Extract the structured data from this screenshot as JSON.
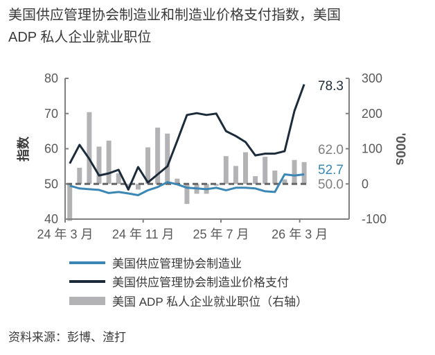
{
  "chart_data": {
    "type": "line",
    "title": "美国供应管理协会制造业和制造业价格支付指数，美国 ADP 私人企业就业职位",
    "ylabel": "指数",
    "y2label": "'000s",
    "ylim": [
      40,
      80
    ],
    "y2lim": [
      -100,
      300
    ],
    "yticks": [
      "80",
      "70",
      "60",
      "50",
      "40"
    ],
    "y2ticks": [
      "300",
      "200",
      "100",
      "0",
      "-100"
    ],
    "xticks": [
      "24 年 3 月",
      "24 年 11 月",
      "25 年 7 月",
      "26 年 3 月"
    ],
    "reference_line": 50,
    "x": [
      "2024-03",
      "2024-04",
      "2024-05",
      "2024-06",
      "2024-07",
      "2024-08",
      "2024-09",
      "2024-10",
      "2024-11",
      "2024-12",
      "2025-01",
      "2025-02",
      "2025-03",
      "2025-04",
      "2025-05",
      "2025-06",
      "2025-07",
      "2025-08",
      "2025-09",
      "2025-10",
      "2025-11",
      "2025-12",
      "2026-01",
      "2026-02",
      "2026-03"
    ],
    "series": [
      {
        "name": "美国供应管理协会制造业",
        "axis": "left",
        "type": "line",
        "color": "#3a87b5",
        "values": [
          49.5,
          48.7,
          48.5,
          48.3,
          47.4,
          47.7,
          47.3,
          46.8,
          48.2,
          49.1,
          50.5,
          49.9,
          48.9,
          48.7,
          48.5,
          48.9,
          48.2,
          48.9,
          48.9,
          48.7,
          47.9,
          47.7,
          52.7,
          52.4,
          52.7
        ]
      },
      {
        "name": "美国供应管理协会制造业价格支付",
        "axis": "left",
        "type": "line",
        "color": "#1c2b3a",
        "values": [
          55.8,
          61.1,
          57.1,
          52.4,
          53.0,
          54.0,
          48.4,
          54.8,
          50.4,
          52.7,
          55.0,
          62.2,
          69.6,
          70.1,
          69.6,
          70.0,
          65.0,
          63.6,
          61.9,
          58.1,
          58.6,
          58.6,
          59.3,
          70.7,
          78.3
        ]
      },
      {
        "name": "美国 ADP 私人企业就业职位（右轴）",
        "axis": "right",
        "type": "bar",
        "color": "#b3b3b6",
        "values": [
          -105,
          46,
          204,
          106,
          123,
          30,
          -10,
          -16,
          104,
          160,
          143,
          15,
          -57,
          -28,
          -28,
          -5,
          79,
          51,
          90,
          22,
          77,
          38,
          13,
          68,
          62
        ]
      }
    ],
    "end_labels": [
      {
        "text": "78.3",
        "color": "#1c2b3a"
      },
      {
        "text": "62.0",
        "color": "#7f7f7f"
      },
      {
        "text": "52.7",
        "color": "#3a87b5"
      },
      {
        "text": "50.0",
        "color": "#7f7f7f"
      }
    ]
  },
  "title_line1": "美国供应管理协会制造业和制造业价格支付指数，美国",
  "title_line2": "ADP 私人企业就业职位",
  "legend": [
    "美国供应管理协会制造业",
    "美国供应管理协会制造业价格支付",
    "美国 ADP 私人企业就业职位（右轴）"
  ],
  "source": "资料来源：彭博、渣打"
}
